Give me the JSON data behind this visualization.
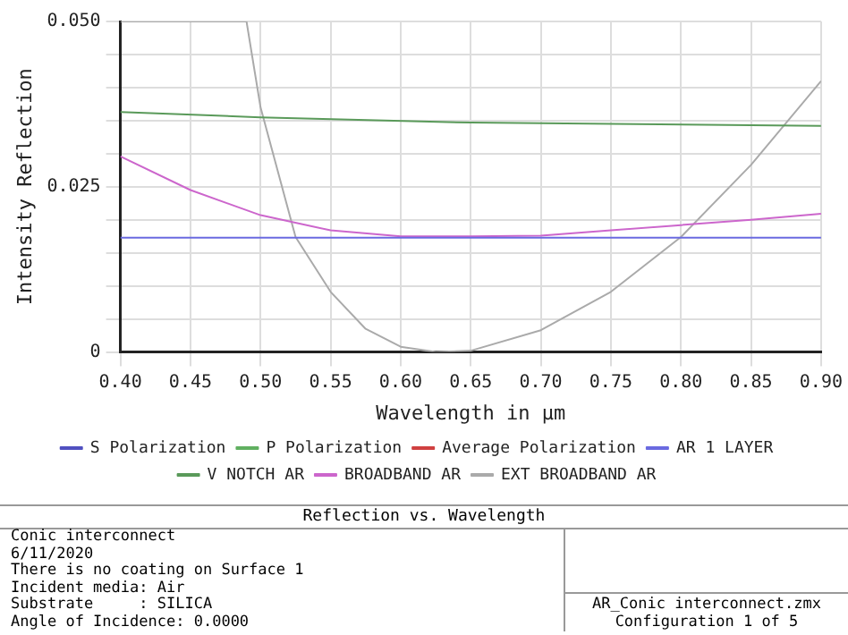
{
  "chart_data": {
    "type": "line",
    "title": "Reflection vs. Wavelength",
    "xlabel": "Wavelength in µm",
    "ylabel": "Intensity Reflection",
    "xlim": [
      0.4,
      0.9
    ],
    "ylim": [
      0,
      0.05
    ],
    "xticks": [
      {
        "value": 0.4,
        "label": "0.40"
      },
      {
        "value": 0.45,
        "label": "0.45"
      },
      {
        "value": 0.5,
        "label": "0.50"
      },
      {
        "value": 0.55,
        "label": "0.55"
      },
      {
        "value": 0.6,
        "label": "0.60"
      },
      {
        "value": 0.65,
        "label": "0.65"
      },
      {
        "value": 0.7,
        "label": "0.70"
      },
      {
        "value": 0.75,
        "label": "0.75"
      },
      {
        "value": 0.8,
        "label": "0.80"
      },
      {
        "value": 0.85,
        "label": "0.85"
      },
      {
        "value": 0.9,
        "label": "0.90"
      }
    ],
    "yticks": [
      0,
      {
        "value": 0.005,
        "label": null
      },
      {
        "value": 0.01,
        "label": null
      },
      {
        "value": 0.015,
        "label": null
      },
      {
        "value": 0.02,
        "label": null
      },
      0.025,
      {
        "value": 0.03,
        "label": null
      },
      {
        "value": 0.035,
        "label": null
      },
      {
        "value": 0.04,
        "label": null
      },
      {
        "value": 0.045,
        "label": null
      },
      {
        "value": 0.05,
        "label": "0.050"
      }
    ],
    "grid": true,
    "legend": "bottom",
    "marker": "none",
    "line_style": "solid",
    "series": [
      {
        "name": "S Polarization",
        "color": "#5050c0"
      },
      {
        "name": "P Polarization",
        "color": "#60b060"
      },
      {
        "name": "Average Polarization",
        "color": "#d04040"
      },
      {
        "name": "AR 1 LAYER",
        "color": "#6a6ae0",
        "x": [
          0.4,
          0.9
        ],
        "values": [
          0.0173,
          0.0173
        ]
      },
      {
        "name": "V NOTCH AR",
        "color": "#5a9a5a",
        "x": [
          0.4,
          0.5,
          0.65,
          0.9
        ],
        "values": [
          0.0363,
          0.0355,
          0.0347,
          0.0342
        ]
      },
      {
        "name": "BROADBAND AR",
        "color": "#cc66cc",
        "x": [
          0.4,
          0.45,
          0.5,
          0.55,
          0.6,
          0.65,
          0.7,
          0.75,
          0.8,
          0.85,
          0.9
        ],
        "values": [
          0.0296,
          0.0245,
          0.0207,
          0.0184,
          0.0175,
          0.0175,
          0.0176,
          0.0184,
          0.0192,
          0.02,
          0.0209
        ]
      },
      {
        "name": "EXT BROADBAND AR",
        "color": "#aaaaaa",
        "x": [
          0.4,
          0.49,
          0.5,
          0.525,
          0.55,
          0.575,
          0.6,
          0.625,
          0.65,
          0.7,
          0.75,
          0.8,
          0.85,
          0.9
        ],
        "values": [
          0.05,
          0.05,
          0.037,
          0.0174,
          0.0091,
          0.0035,
          0.0008,
          0,
          0.0002,
          0.0033,
          0.0091,
          0.0174,
          0.0283,
          0.041
        ]
      }
    ],
    "annotations": [
      "Conic interconnect",
      "6/11/2020",
      "There is no coating on Surface 1",
      "Incident media: Air",
      "Substrate     : SILICA",
      "Angle of Incidence: 0.0000",
      "AR_Conic interconnect.zmx",
      "Configuration 1 of 5"
    ]
  }
}
